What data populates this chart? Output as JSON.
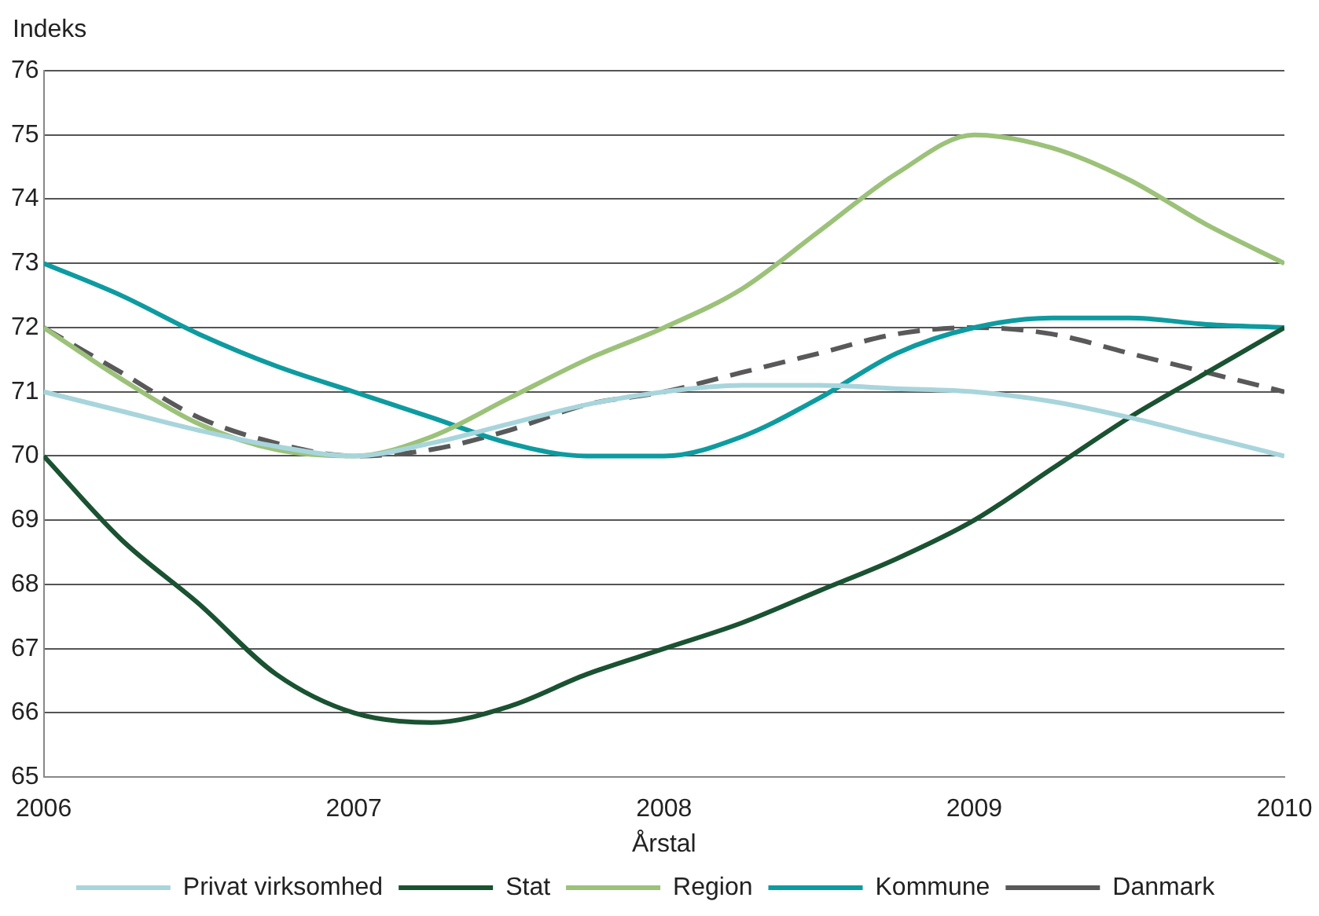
{
  "chart_data": {
    "type": "line",
    "ylabel": "Indeks",
    "xlabel": "Årstal",
    "xlim": [
      2006,
      2010
    ],
    "xticks": [
      2006,
      2007,
      2008,
      2009,
      2010
    ],
    "ylim": [
      65,
      76
    ],
    "yticks": [
      65,
      66,
      67,
      68,
      69,
      70,
      71,
      72,
      73,
      74,
      75,
      76
    ],
    "grid": "y",
    "legend": "bottom",
    "marker": "none",
    "x": [
      2006,
      2006.25,
      2006.5,
      2006.75,
      2007,
      2007.25,
      2007.5,
      2007.75,
      2008,
      2008.25,
      2008.5,
      2008.75,
      2009,
      2009.25,
      2009.5,
      2009.75,
      2010
    ],
    "series": [
      {
        "name": "Privat virksomhed",
        "color": "#a8d5dc",
        "values": [
          71,
          70.7,
          70.4,
          70.15,
          70.0,
          70.2,
          70.5,
          70.8,
          71.0,
          71.1,
          71.1,
          71.05,
          71.0,
          70.85,
          70.6,
          70.3,
          70.0
        ]
      },
      {
        "name": "Stat",
        "color": "#1a5232",
        "values": [
          70,
          68.7,
          67.7,
          66.6,
          66.0,
          65.85,
          66.1,
          66.6,
          67.0,
          67.4,
          67.9,
          68.4,
          69.0,
          69.8,
          70.6,
          71.3,
          72
        ]
      },
      {
        "name": "Region",
        "color": "#9cc27a",
        "values": [
          72,
          71.2,
          70.5,
          70.1,
          70.0,
          70.3,
          70.9,
          71.5,
          72.0,
          72.6,
          73.5,
          74.4,
          75.0,
          74.8,
          74.3,
          73.6,
          73.0
        ]
      },
      {
        "name": "Kommune",
        "color": "#0e9ba0",
        "values": [
          73,
          72.5,
          71.9,
          71.4,
          71.0,
          70.6,
          70.2,
          70.0,
          70.0,
          70.3,
          70.9,
          71.6,
          72.0,
          72.15,
          72.15,
          72.05,
          72.0
        ]
      },
      {
        "name": "Danmark",
        "color": "#595959",
        "line_style": "dashed",
        "values": [
          72,
          71.3,
          70.6,
          70.2,
          70.0,
          70.1,
          70.4,
          70.8,
          71.0,
          71.3,
          71.6,
          71.9,
          72.0,
          71.9,
          71.6,
          71.3,
          71.0
        ]
      }
    ]
  }
}
